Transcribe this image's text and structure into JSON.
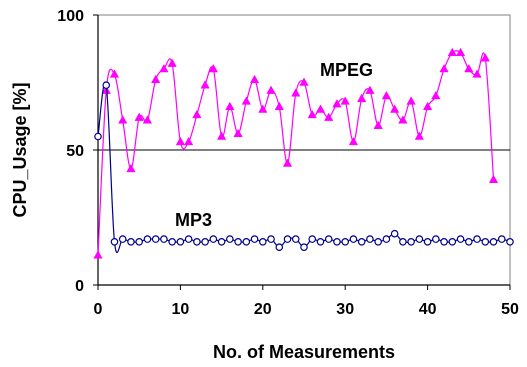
{
  "chart_data": {
    "type": "line",
    "xlabel": "No. of Measurements",
    "ylabel": "CPU_Usage [%]",
    "xlim": [
      0,
      50
    ],
    "ylim": [
      0,
      100
    ],
    "x_ticks": [
      "0",
      "10",
      "20",
      "30",
      "40",
      "50"
    ],
    "y_ticks": [
      "0",
      "50",
      "100"
    ],
    "grid": "horizontal line at 50",
    "series": [
      {
        "name": "MPEG",
        "color": "#ff00ff",
        "marker": "triangle",
        "x": [
          0,
          1,
          2,
          3,
          4,
          5,
          6,
          7,
          8,
          9,
          10,
          11,
          12,
          13,
          14,
          15,
          16,
          17,
          18,
          19,
          20,
          21,
          22,
          23,
          24,
          25,
          26,
          27,
          28,
          29,
          30,
          31,
          32,
          33,
          34,
          35,
          36,
          37,
          38,
          39,
          40,
          41,
          42,
          43,
          44,
          45,
          46,
          47,
          48
        ],
        "values": [
          11,
          72,
          78,
          61,
          43,
          62,
          61,
          76,
          80,
          82,
          53,
          53,
          63,
          74,
          80,
          55,
          66,
          56,
          68,
          76,
          65,
          72,
          66,
          45,
          71,
          75,
          63,
          65,
          62,
          67,
          68,
          53,
          69,
          72,
          59,
          70,
          65,
          61,
          68,
          55,
          66,
          70,
          80,
          86,
          86,
          80,
          78,
          84,
          39
        ]
      },
      {
        "name": "MP3",
        "color": "#00008b",
        "marker": "circle",
        "x": [
          0,
          1,
          2,
          3,
          4,
          5,
          6,
          7,
          8,
          9,
          10,
          11,
          12,
          13,
          14,
          15,
          16,
          17,
          18,
          19,
          20,
          21,
          22,
          23,
          24,
          25,
          26,
          27,
          28,
          29,
          30,
          31,
          32,
          33,
          34,
          35,
          36,
          37,
          38,
          39,
          40,
          41,
          42,
          43,
          44,
          45,
          46,
          47,
          48,
          49,
          50
        ],
        "values": [
          55,
          74,
          16,
          17,
          16,
          16,
          17,
          17,
          17,
          16,
          16,
          17,
          16,
          16,
          17,
          16,
          17,
          16,
          16,
          17,
          16,
          17,
          14,
          17,
          17,
          14,
          17,
          16,
          17,
          16,
          16,
          17,
          16,
          17,
          16,
          17,
          19,
          16,
          16,
          17,
          16,
          17,
          16,
          16,
          17,
          16,
          17,
          16,
          16,
          17,
          16
        ]
      }
    ]
  }
}
